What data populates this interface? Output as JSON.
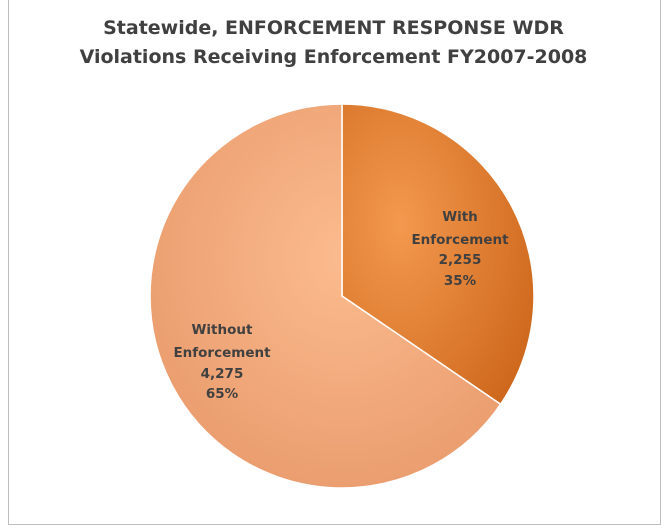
{
  "chart_data": {
    "type": "pie",
    "title_line1": "Statewide, ENFORCEMENT RESPONSE WDR",
    "title_line2": "Violations Receiving Enforcement FY2007-2008",
    "slices": [
      {
        "label_line1": "With",
        "label_line2": "Enforcement",
        "value": 2255,
        "value_text": "2,255",
        "percent_text": "35%",
        "color": "#e8782a",
        "color_light": "#f3994e",
        "color_dark": "#c96116"
      },
      {
        "label_line1": "Without",
        "label_line2": "Enforcement",
        "value": 4275,
        "value_text": "4,275",
        "percent_text": "65%",
        "color": "#f2a576",
        "color_light": "#fbbb8e",
        "color_dark": "#e79768"
      }
    ]
  }
}
